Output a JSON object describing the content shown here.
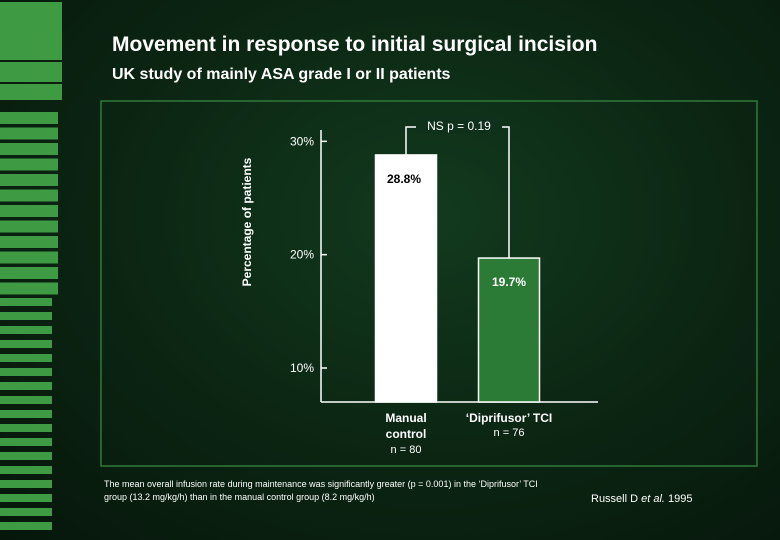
{
  "slide": {
    "title": "Movement in response to initial surgical incision",
    "subtitle": "UK study of mainly ASA grade I or II patients",
    "footnote": "The mean overall infusion rate during maintenance was significantly greater (p = 0.001) in the ‘Diprifusor’ TCI group (13.2 mg/kg/h) than in the manual control group (8.2 mg/kg/h)",
    "citation_author": "Russell D ",
    "citation_etal": "et al.",
    "citation_year": " 1995"
  },
  "colors": {
    "background": "#0b2412",
    "accent_green": "#3f9a44",
    "frame_green": "#2f7a3a",
    "manual_bar": "#ffffff",
    "tci_bar": "#2b7a36"
  },
  "chart_data": {
    "type": "bar",
    "title": "",
    "ylabel": "Percentage of patients",
    "ylim": [
      7,
      31
    ],
    "yticks": [
      10,
      20,
      30
    ],
    "ytick_labels": [
      "10%",
      "20%",
      "30%"
    ],
    "categories": [
      "Manual control",
      "‘Diprifusor’ TCI"
    ],
    "values": [
      28.8,
      19.7
    ],
    "value_labels": [
      "28.8%",
      "19.7%"
    ],
    "sample_sizes": [
      "n = 80",
      "n = 76"
    ],
    "bar_colors": [
      "#ffffff",
      "#2b7a36"
    ],
    "annotation": "NS p = 0.19",
    "grid": false
  }
}
